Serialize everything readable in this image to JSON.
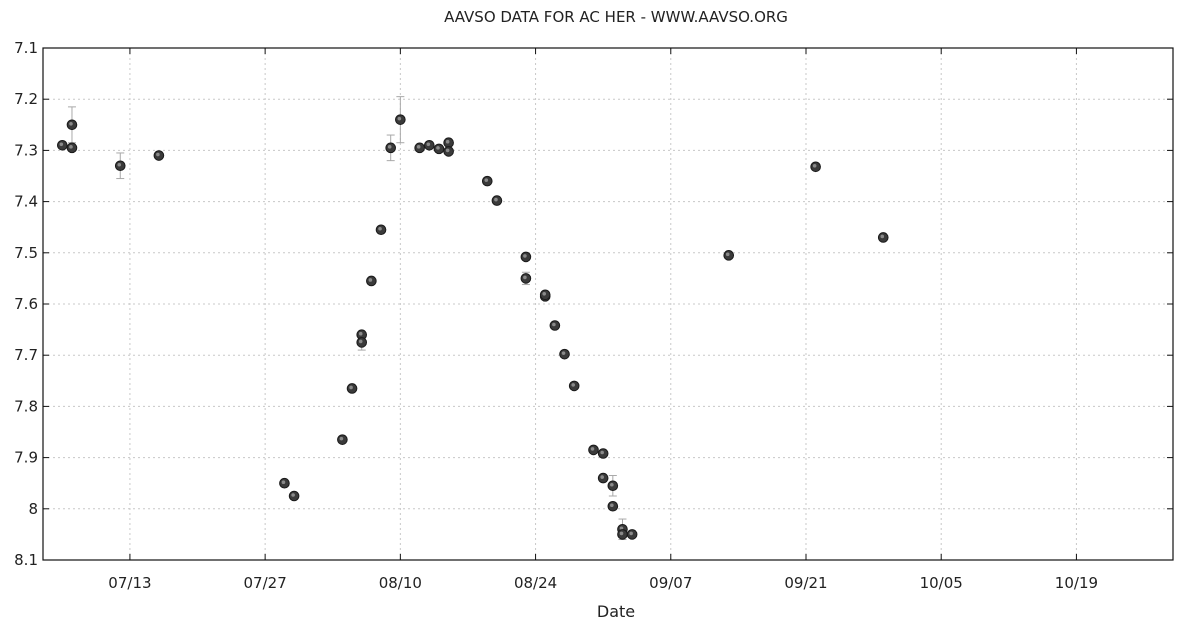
{
  "chart_data": {
    "type": "scatter",
    "title": "AAVSO DATA FOR AC HER - WWW.AAVSO.ORG",
    "xlabel": "Date",
    "ylabel": "",
    "x_ticks": [
      "07/13",
      "07/27",
      "08/10",
      "08/24",
      "09/07",
      "09/21",
      "10/05",
      "10/19"
    ],
    "y_ticks": [
      "7.1",
      "7.2",
      "7.3",
      "7.4",
      "7.5",
      "7.6",
      "7.7",
      "7.8",
      "7.9",
      "8",
      "8.1"
    ],
    "y_inverted": true,
    "ylim": [
      7.1,
      8.1
    ],
    "xlim": [
      "07/04",
      "10/29"
    ],
    "grid": true,
    "x": [
      "07/06",
      "07/07",
      "07/07",
      "07/12",
      "07/16",
      "07/29",
      "07/30",
      "08/04",
      "08/05",
      "08/06",
      "08/06",
      "08/07",
      "08/08",
      "08/09",
      "08/10",
      "08/12",
      "08/13",
      "08/14",
      "08/15",
      "08/15",
      "08/19",
      "08/20",
      "08/23",
      "08/23",
      "08/25",
      "08/25",
      "08/26",
      "08/27",
      "08/28",
      "08/30",
      "08/31",
      "08/31",
      "09/01",
      "09/01",
      "09/02",
      "09/02",
      "09/03",
      "09/13",
      "09/22",
      "09/29"
    ],
    "y": [
      7.29,
      7.25,
      7.295,
      7.33,
      7.31,
      7.95,
      7.975,
      7.865,
      7.765,
      7.66,
      7.675,
      7.555,
      7.455,
      7.295,
      7.24,
      7.295,
      7.29,
      7.297,
      7.285,
      7.302,
      7.36,
      7.398,
      7.508,
      7.55,
      7.585,
      7.582,
      7.642,
      7.698,
      7.76,
      7.885,
      7.892,
      7.94,
      7.955,
      7.995,
      8.04,
      8.05,
      8.05,
      7.505,
      7.332,
      7.47
    ],
    "errors": [
      0,
      0.035,
      0,
      0.025,
      0,
      0,
      0,
      0,
      0,
      0,
      0.015,
      0,
      0,
      0.025,
      0.045,
      0,
      0,
      0,
      0,
      0,
      0,
      0,
      0,
      0.012,
      0,
      0,
      0,
      0,
      0,
      0,
      0,
      0,
      0.02,
      0,
      0.02,
      0,
      0,
      0,
      0,
      0
    ]
  }
}
